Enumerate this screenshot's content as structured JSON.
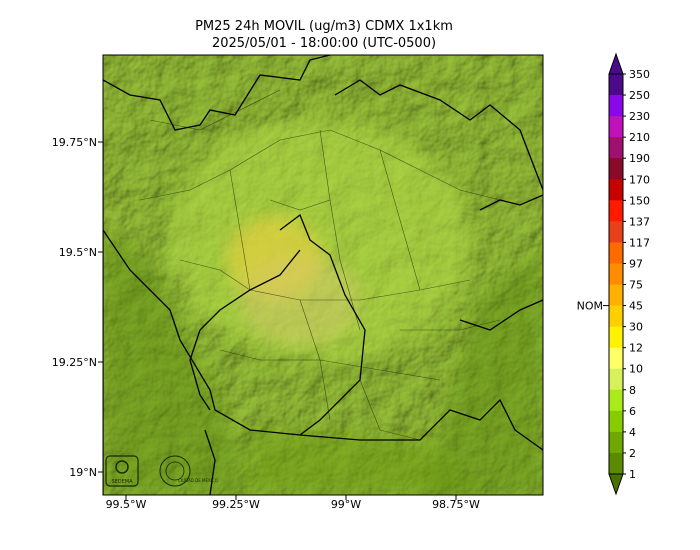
{
  "title": {
    "line1": "PM25 24h MOVIL (ug/m3) CDMX 1x1km",
    "line2": "2025/05/01 - 18:00:00 (UTC-0500)"
  },
  "map": {
    "lat_ticks": [
      "19.75°N",
      "19.5°N",
      "19.25°N",
      "19°N"
    ],
    "lon_ticks": [
      "99.5°W",
      "99.25°W",
      "99°W",
      "98.75°W"
    ],
    "logos": {
      "sedema": "SEDEMA",
      "cdmx": "CIUDAD DE MÉXICO"
    }
  },
  "colorbar": {
    "nom_label": "NOM",
    "levels": [
      {
        "label": "350",
        "color": "#4b0a8a"
      },
      {
        "label": "250",
        "color": "#8a08e8"
      },
      {
        "label": "230",
        "color": "#c012b8"
      },
      {
        "label": "210",
        "color": "#a0106e"
      },
      {
        "label": "190",
        "color": "#8a0a2a"
      },
      {
        "label": "170",
        "color": "#c80000"
      },
      {
        "label": "150",
        "color": "#ff1a00"
      },
      {
        "label": "137",
        "color": "#e8401a"
      },
      {
        "label": "117",
        "color": "#ff6a00"
      },
      {
        "label": "97",
        "color": "#ff8c00"
      },
      {
        "label": "75",
        "color": "#ffb000"
      },
      {
        "label": "45",
        "color": "#ffd000"
      },
      {
        "label": "30",
        "color": "#fff200"
      },
      {
        "label": "12",
        "color": "#ffff66"
      },
      {
        "label": "10",
        "color": "#d8f05a"
      },
      {
        "label": "8",
        "color": "#aaea1a"
      },
      {
        "label": "6",
        "color": "#88cc00"
      },
      {
        "label": "4",
        "color": "#6ea800"
      },
      {
        "label": "2",
        "color": "#5a8a00"
      },
      {
        "label": "1",
        "color": "#4a7000"
      }
    ]
  }
}
